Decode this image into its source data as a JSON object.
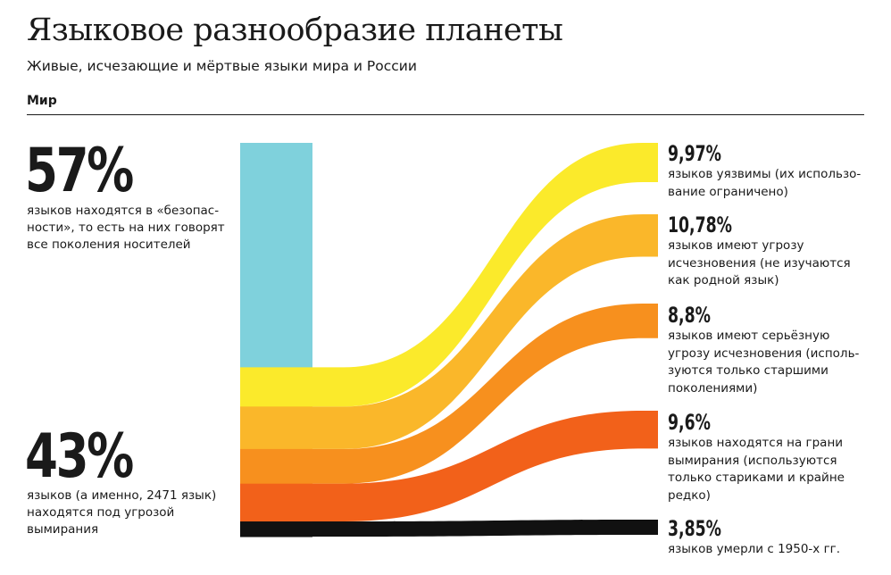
{
  "header": {
    "title": "Языковое разнообразие планеты",
    "subtitle": "Живые, исчезающие и мёртвые языки мира и России",
    "section": "Мир"
  },
  "left": {
    "safe_pct": "57%",
    "safe_desc": "языков находятся в «безопас-ности», то есть на них говорят все поколения носителей",
    "endangered_pct": "43%",
    "endangered_desc": "языков (а именно, 2471 язык) находятся под угрозой вымирания"
  },
  "chart_data": {
    "type": "sankey",
    "title": "Языковое разнообразие планеты",
    "unit": "% of world languages",
    "total": 100,
    "source_bar": [
      {
        "name": "safe",
        "value": 57,
        "color": "#7fd1dc"
      },
      {
        "name": "vulnerable",
        "value": 9.97,
        "color": "#fbea2b"
      },
      {
        "name": "definitely endangered",
        "value": 10.78,
        "color": "#fab72a"
      },
      {
        "name": "severely endangered",
        "value": 8.8,
        "color": "#f7901e"
      },
      {
        "name": "critically endangered",
        "value": 9.6,
        "color": "#f2611a"
      },
      {
        "name": "extinct",
        "value": 3.85,
        "color": "#111111"
      }
    ],
    "flows": [
      {
        "label": "9,97%",
        "value": 9.97,
        "color": "#fbea2b",
        "description": "языков уязвимы (их использо-вание ограничено)"
      },
      {
        "label": "10,78%",
        "value": 10.78,
        "color": "#fab72a",
        "description": "языков имеют угрозу исчезновения (не изучаются как родной язык)"
      },
      {
        "label": "8,8%",
        "value": 8.8,
        "color": "#f7901e",
        "description": "языков имеют серьёзную угрозу исчезновения (исполь-зуются только старшими поколениями)"
      },
      {
        "label": "9,6%",
        "value": 9.6,
        "color": "#f2611a",
        "description": "языков находятся на грани вымирания (используются только стариками и крайне редко)"
      },
      {
        "label": "3,85%",
        "value": 3.85,
        "color": "#111111",
        "description": "языков умерли с 1950-х гг."
      }
    ]
  }
}
